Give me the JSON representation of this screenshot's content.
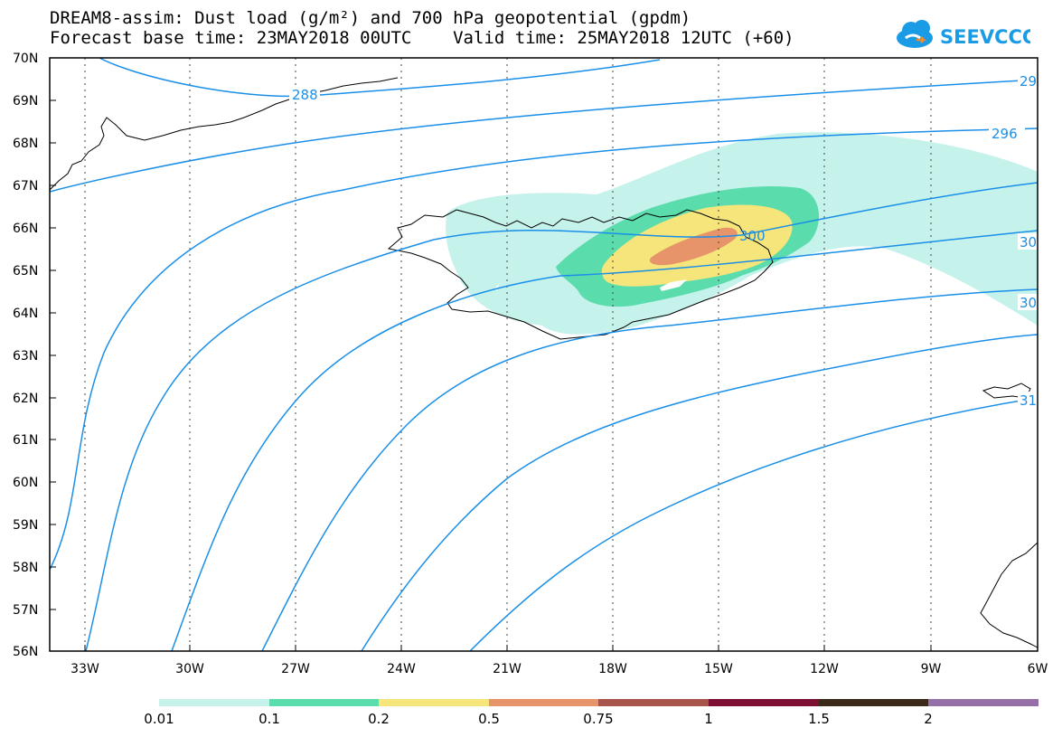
{
  "header": {
    "line1": "DREAM8-assim: Dust load (g/m²) and 700 hPa geopotential (gpdm)",
    "line2": "Forecast base time: 23MAY2018 00UTC    Valid time: 25MAY2018 12UTC (+60)"
  },
  "logo": {
    "text": "SEEVCCC",
    "icon": "cloud-icon",
    "color": "#1a9be6"
  },
  "axes": {
    "lat_labels": [
      "70N",
      "69N",
      "68N",
      "67N",
      "66N",
      "65N",
      "64N",
      "63N",
      "62N",
      "61N",
      "60N",
      "59N",
      "58N",
      "57N",
      "56N"
    ],
    "lon_labels": [
      "33W",
      "30W",
      "27W",
      "24W",
      "21W",
      "18W",
      "15W",
      "12W",
      "9W",
      "6W"
    ]
  },
  "contours": {
    "labels": [
      "288",
      "296",
      "300",
      "30",
      "30",
      "29",
      "31"
    ],
    "color": "#1a8fe8"
  },
  "colorbar": {
    "ticks": [
      "0.01",
      "0.1",
      "0.2",
      "0.5",
      "0.75",
      "1",
      "1.5",
      "2"
    ],
    "colors": [
      "#c6f2ec",
      "#5bdcad",
      "#f5e57a",
      "#e8946a",
      "#a8554c",
      "#7d0f33",
      "#3b2a18",
      "#9570a8"
    ]
  },
  "dust_colors": {
    "low": "#c6f2ec",
    "mid": "#5bdcad",
    "high": "#f5e57a",
    "max": "#e8946a"
  }
}
